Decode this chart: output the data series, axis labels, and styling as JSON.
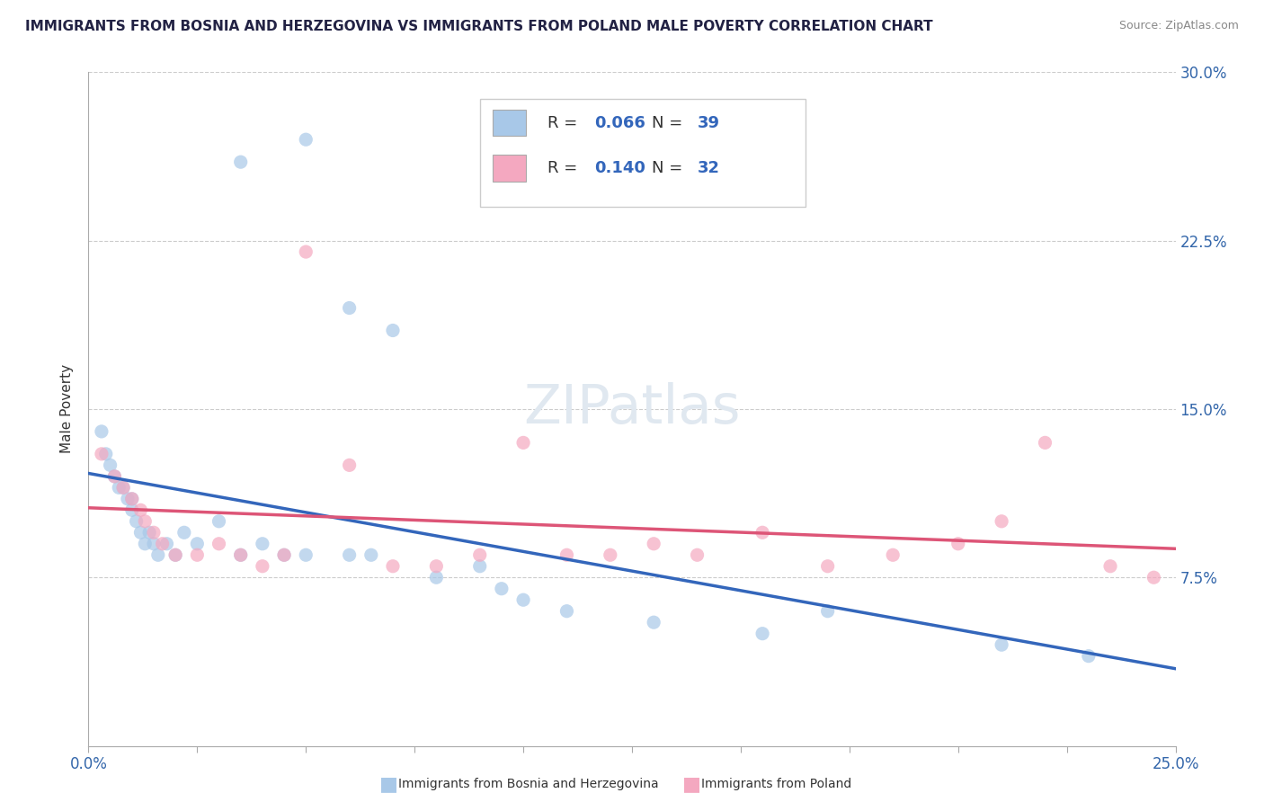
{
  "title": "IMMIGRANTS FROM BOSNIA AND HERZEGOVINA VS IMMIGRANTS FROM POLAND MALE POVERTY CORRELATION CHART",
  "source": "Source: ZipAtlas.com",
  "ylabel": "Male Poverty",
  "xlim": [
    0.0,
    0.25
  ],
  "ylim": [
    0.0,
    0.3
  ],
  "xticks": [
    0.0,
    0.025,
    0.05,
    0.075,
    0.1,
    0.125,
    0.15,
    0.175,
    0.2,
    0.225,
    0.25
  ],
  "yticks": [
    0.0,
    0.075,
    0.15,
    0.225,
    0.3
  ],
  "blue_color": "#a8c8e8",
  "pink_color": "#f4a8c0",
  "blue_line_color": "#3366bb",
  "pink_line_color": "#dd5577",
  "R_blue": 0.066,
  "N_blue": 39,
  "R_pink": 0.14,
  "N_pink": 32,
  "bosnia_x": [
    0.003,
    0.005,
    0.007,
    0.008,
    0.008,
    0.009,
    0.01,
    0.01,
    0.01,
    0.012,
    0.012,
    0.013,
    0.013,
    0.014,
    0.015,
    0.016,
    0.017,
    0.018,
    0.02,
    0.022,
    0.025,
    0.03,
    0.035,
    0.04,
    0.05,
    0.055,
    0.06,
    0.065,
    0.07,
    0.075,
    0.085,
    0.09,
    0.1,
    0.11,
    0.13,
    0.155,
    0.17,
    0.21,
    0.23
  ],
  "bosnia_y": [
    0.14,
    0.13,
    0.125,
    0.12,
    0.115,
    0.11,
    0.115,
    0.11,
    0.105,
    0.11,
    0.1,
    0.095,
    0.09,
    0.085,
    0.095,
    0.09,
    0.085,
    0.09,
    0.085,
    0.095,
    0.09,
    0.1,
    0.085,
    0.085,
    0.08,
    0.085,
    0.085,
    0.085,
    0.08,
    0.08,
    0.07,
    0.075,
    0.065,
    0.055,
    0.055,
    0.05,
    0.06,
    0.045,
    0.04
  ],
  "poland_x": [
    0.003,
    0.006,
    0.008,
    0.01,
    0.012,
    0.013,
    0.015,
    0.017,
    0.02,
    0.025,
    0.03,
    0.035,
    0.04,
    0.045,
    0.05,
    0.06,
    0.07,
    0.08,
    0.09,
    0.1,
    0.11,
    0.12,
    0.13,
    0.14,
    0.155,
    0.17,
    0.185,
    0.2,
    0.21,
    0.22,
    0.235,
    0.245
  ],
  "poland_y": [
    0.13,
    0.12,
    0.115,
    0.11,
    0.105,
    0.1,
    0.095,
    0.09,
    0.085,
    0.085,
    0.09,
    0.085,
    0.08,
    0.085,
    0.08,
    0.08,
    0.08,
    0.08,
    0.085,
    0.085,
    0.085,
    0.08,
    0.085,
    0.085,
    0.09,
    0.08,
    0.085,
    0.09,
    0.1,
    0.095,
    0.08,
    0.075
  ]
}
